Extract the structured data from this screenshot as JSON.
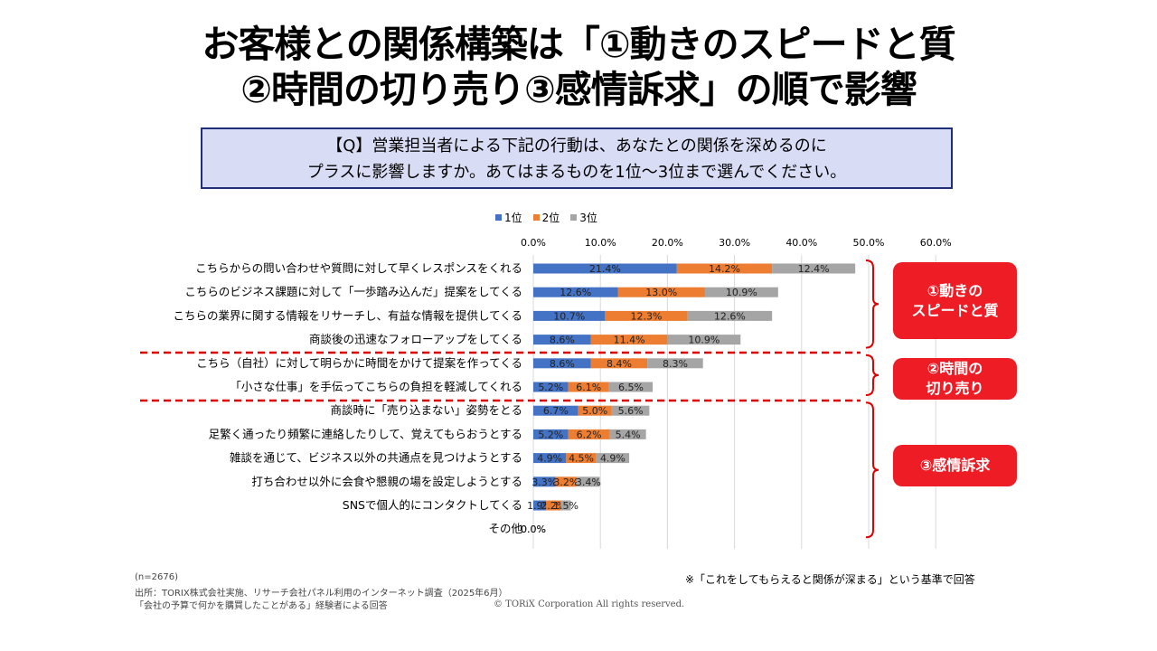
{
  "title_line1": "お客様との関係構築は「①動きのスピードと質",
  "title_line2": "②時間の切り売り③感情訴求」の順で影響",
  "question_line1": "【Q】営業担当者による下記の行動は、あなたとの関係を深めるのに",
  "question_line2": "プラスに影響しますか。あてはまるものを1位～3位まで選んでください。",
  "colors": {
    "rank1": "#4472c4",
    "rank2": "#ed7d31",
    "rank3": "#a5a5a5",
    "accent": "#ee1c24"
  },
  "chart_data": {
    "type": "bar",
    "orientation": "horizontal-stacked",
    "xlim": [
      0,
      60
    ],
    "x_ticks": [
      "0.0%",
      "10.0%",
      "20.0%",
      "30.0%",
      "40.0%",
      "50.0%",
      "60.0%"
    ],
    "grid": true,
    "legend_position": "top",
    "categories": [
      "こちらからの問い合わせや質問に対して早くレスポンスをくれる",
      "こちらのビジネス課題に対して「一歩踏み込んだ」提案をしてくる",
      "こちらの業界に関する情報をリサーチし、有益な情報を提供してくる",
      "商談後の迅速なフォローアップをしてくる",
      "こちら（自社）に対して明らかに時間をかけて提案を作ってくる",
      "「小さな仕事」を手伝ってこちらの負担を軽減してくれる",
      "商談時に「売り込まない」姿勢をとる",
      "足繁く通ったり頻繁に連絡したりして、覚えてもらおうとする",
      "雑談を通じて、ビジネス以外の共通点を見つけようとする",
      "打ち合わせ以外に会食や懇親の場を設定しようとする",
      "SNSで個人的にコンタクトしてくる",
      "その他"
    ],
    "series": [
      {
        "name": "1位",
        "values": [
          21.4,
          12.6,
          10.7,
          8.6,
          8.6,
          5.2,
          6.7,
          5.2,
          4.9,
          3.3,
          1.9,
          0.0
        ],
        "labels": [
          "21.4%",
          "12.6%",
          "10.7%",
          "8.6%",
          "8.6%",
          "5.2%",
          "6.7%",
          "5.2%",
          "4.9%",
          "3.3%",
          "1.9%",
          "0.0%"
        ]
      },
      {
        "name": "2位",
        "values": [
          14.2,
          13.0,
          12.3,
          11.4,
          8.4,
          6.1,
          5.0,
          6.2,
          4.5,
          3.2,
          2.2,
          0.0
        ],
        "labels": [
          "14.2%",
          "13.0%",
          "12.3%",
          "11.4%",
          "8.4%",
          "6.1%",
          "5.0%",
          "6.2%",
          "4.5%",
          "3.2%",
          "2.2%",
          "0.0%"
        ]
      },
      {
        "name": "3位",
        "values": [
          12.4,
          10.9,
          12.6,
          10.9,
          8.3,
          6.5,
          5.6,
          5.4,
          4.9,
          3.4,
          1.5,
          0.0
        ],
        "labels": [
          "12.4%",
          "10.9%",
          "12.6%",
          "10.9%",
          "8.3%",
          "6.5%",
          "5.6%",
          "5.4%",
          "4.9%",
          "3.4%",
          "1.5%",
          "0.0%"
        ]
      }
    ],
    "groups": [
      {
        "label": "①動きの\nスピードと質",
        "rows": [
          0,
          3
        ]
      },
      {
        "label": "②時間の\n切り売り",
        "rows": [
          4,
          5
        ]
      },
      {
        "label": "③感情訴求",
        "rows": [
          6,
          11
        ]
      }
    ]
  },
  "footer": {
    "n": "(n=2676)",
    "source": "出所：TORIX株式会社実施、リサーチ会社パネル利用のインターネット調査（2025年6月）",
    "respondents": "「会社の予算で何かを購買したことがある」経験者による回答",
    "note": "※「これをしてもらえると関係が深まる」という基準で回答",
    "copyright": "© TORiX Corporation All rights reserved."
  }
}
